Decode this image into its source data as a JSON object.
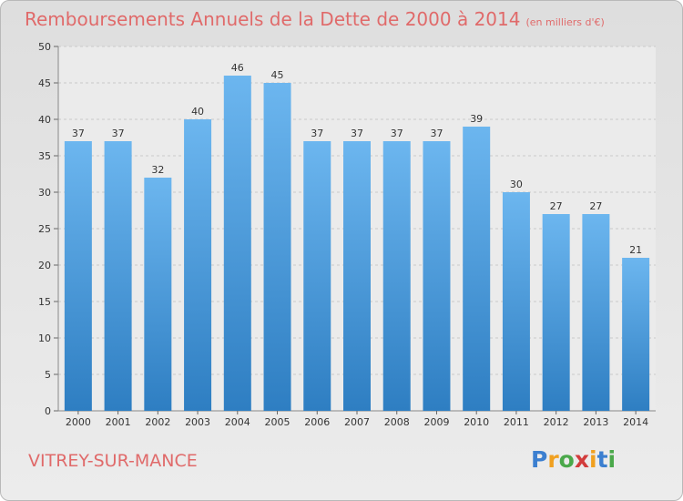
{
  "header": {
    "title": "Remboursements Annuels de la Dette de 2000 à 2014",
    "unit": "(en milliers d'€)"
  },
  "footer": {
    "place": "VITREY-SUR-MANCE"
  },
  "brand": {
    "letters": [
      "P",
      "r",
      "o",
      "x",
      "i",
      "t",
      "i"
    ],
    "colors": [
      "#3b7fd0",
      "#f0a020",
      "#4aa84a",
      "#d23c3c",
      "#f0a020",
      "#3b7fd0",
      "#4aa84a"
    ]
  },
  "colors": {
    "bar_top": "#6cb6ef",
    "bar_bottom": "#2e7ec2",
    "title": "#e06a6a"
  },
  "chart_data": {
    "type": "bar",
    "title": "Remboursements Annuels de la Dette de 2000 à 2014",
    "xlabel": "",
    "ylabel": "",
    "categories": [
      "2000",
      "2001",
      "2002",
      "2003",
      "2004",
      "2005",
      "2006",
      "2007",
      "2008",
      "2009",
      "2010",
      "2011",
      "2012",
      "2013",
      "2014"
    ],
    "values": [
      37,
      37,
      32,
      40,
      46,
      45,
      37,
      37,
      37,
      37,
      39,
      30,
      27,
      27,
      21
    ],
    "ylim": [
      0,
      50
    ],
    "yticks": [
      0,
      5,
      10,
      15,
      20,
      25,
      30,
      35,
      40,
      45,
      50
    ],
    "grid": true
  }
}
